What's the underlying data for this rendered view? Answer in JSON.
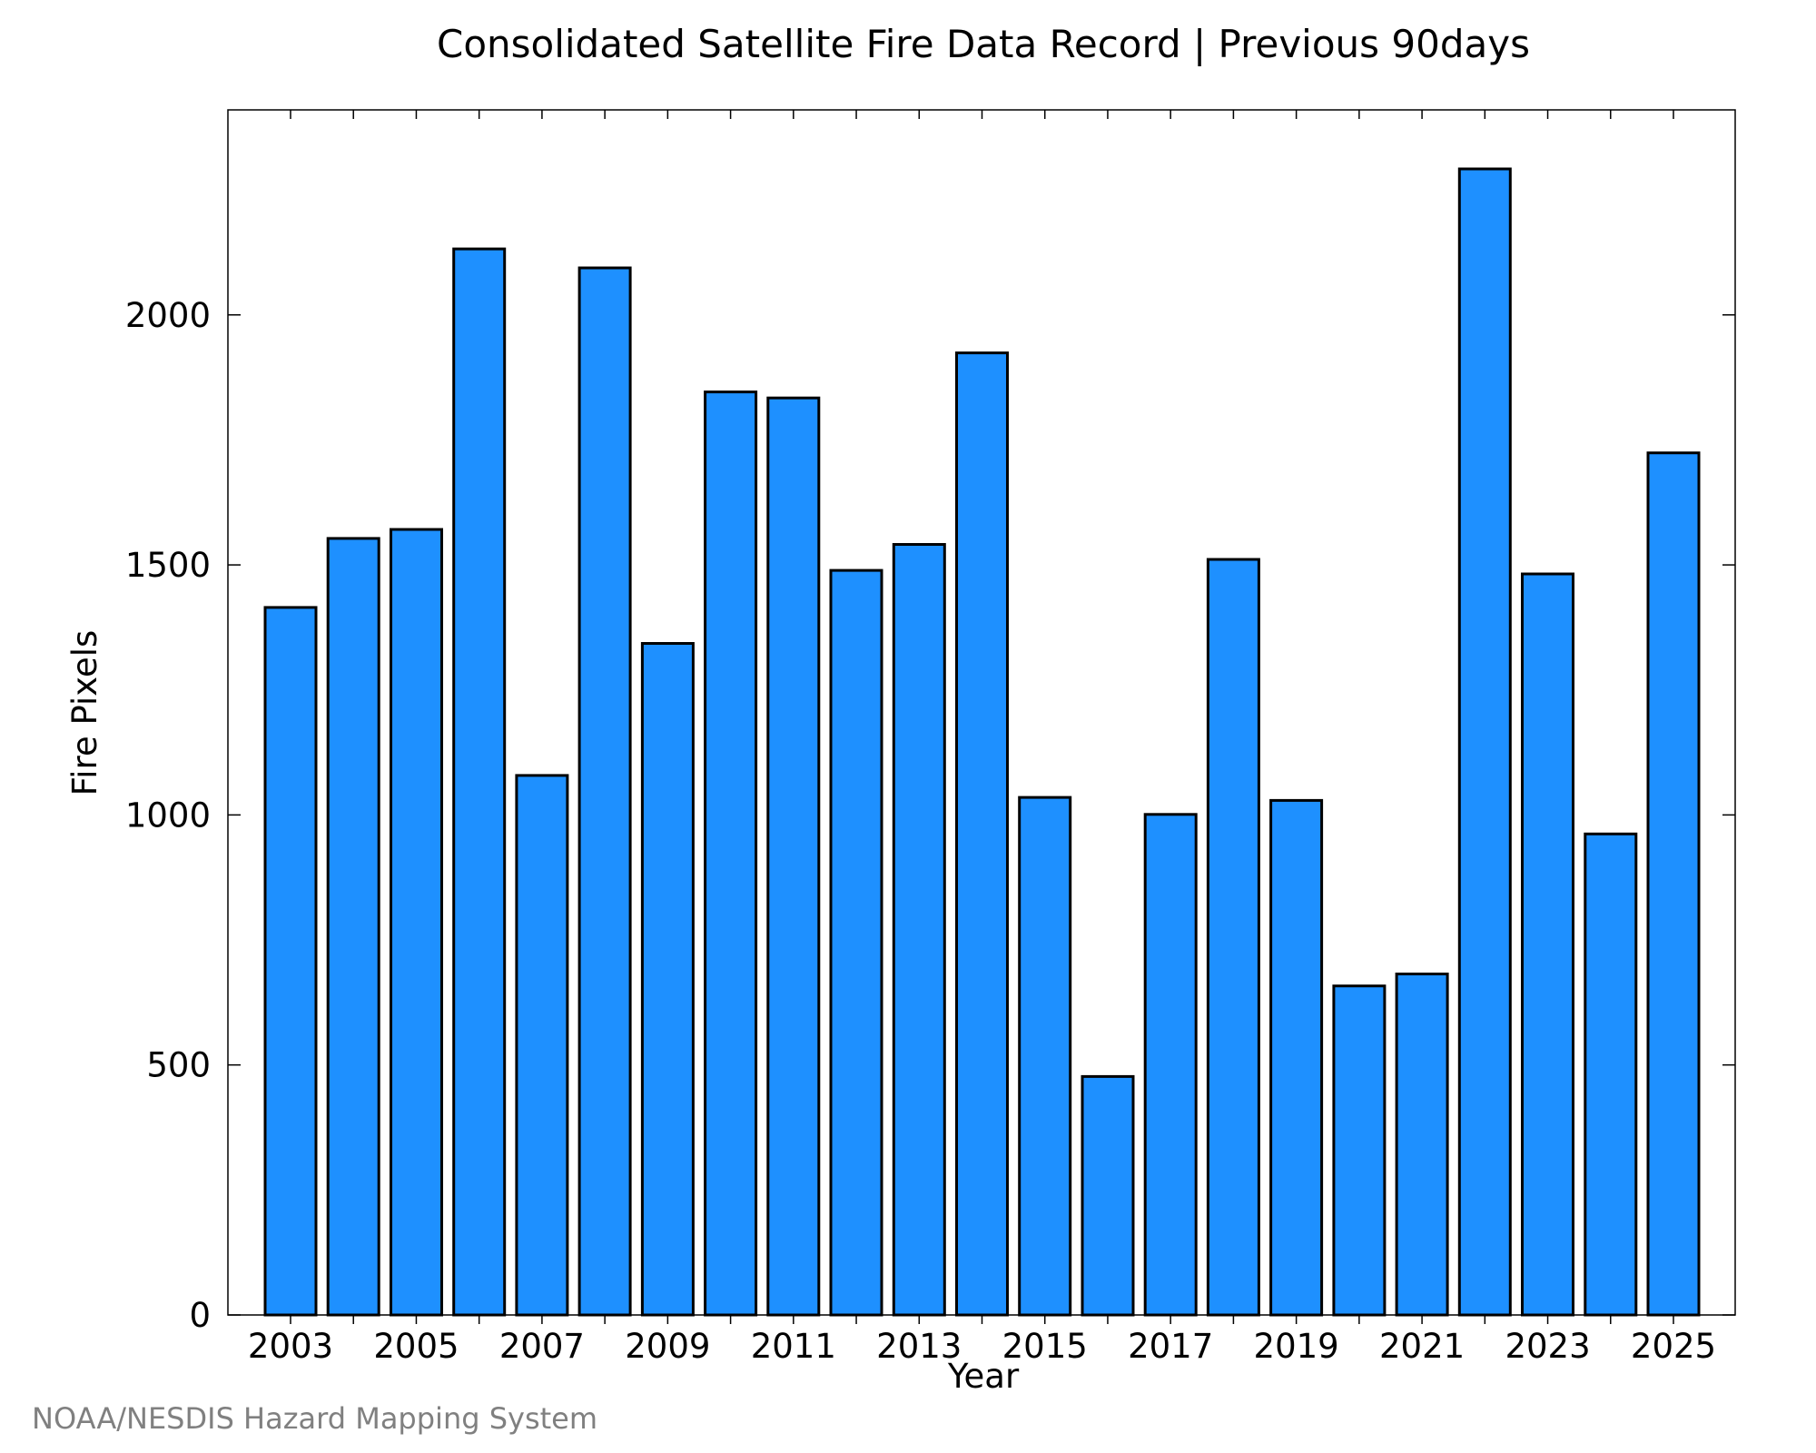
{
  "credit": "NOAA/NESDIS Hazard Mapping System",
  "chart_data": {
    "type": "bar",
    "title": "Consolidated Satellite Fire Data Record | Previous 90days",
    "xlabel": "Year",
    "ylabel": "Fire Pixels",
    "ylim": [
      0,
      2410
    ],
    "yticks": [
      0,
      500,
      1000,
      1500,
      2000
    ],
    "xticks": [
      2003,
      2005,
      2007,
      2009,
      2011,
      2013,
      2015,
      2017,
      2019,
      2021,
      2023,
      2025
    ],
    "grid": false,
    "bar_color": "#1E90FF",
    "bar_edge_color": "#000000",
    "categories": [
      2003,
      2004,
      2005,
      2006,
      2007,
      2008,
      2009,
      2010,
      2011,
      2012,
      2013,
      2014,
      2015,
      2016,
      2017,
      2018,
      2019,
      2020,
      2021,
      2022,
      2023,
      2024,
      2025
    ],
    "values": [
      1415,
      1553,
      1571,
      2132,
      1079,
      2094,
      1343,
      1846,
      1834,
      1489,
      1541,
      1924,
      1035,
      477,
      1001,
      1511,
      1029,
      658,
      682,
      2292,
      1482,
      962,
      1724
    ]
  }
}
